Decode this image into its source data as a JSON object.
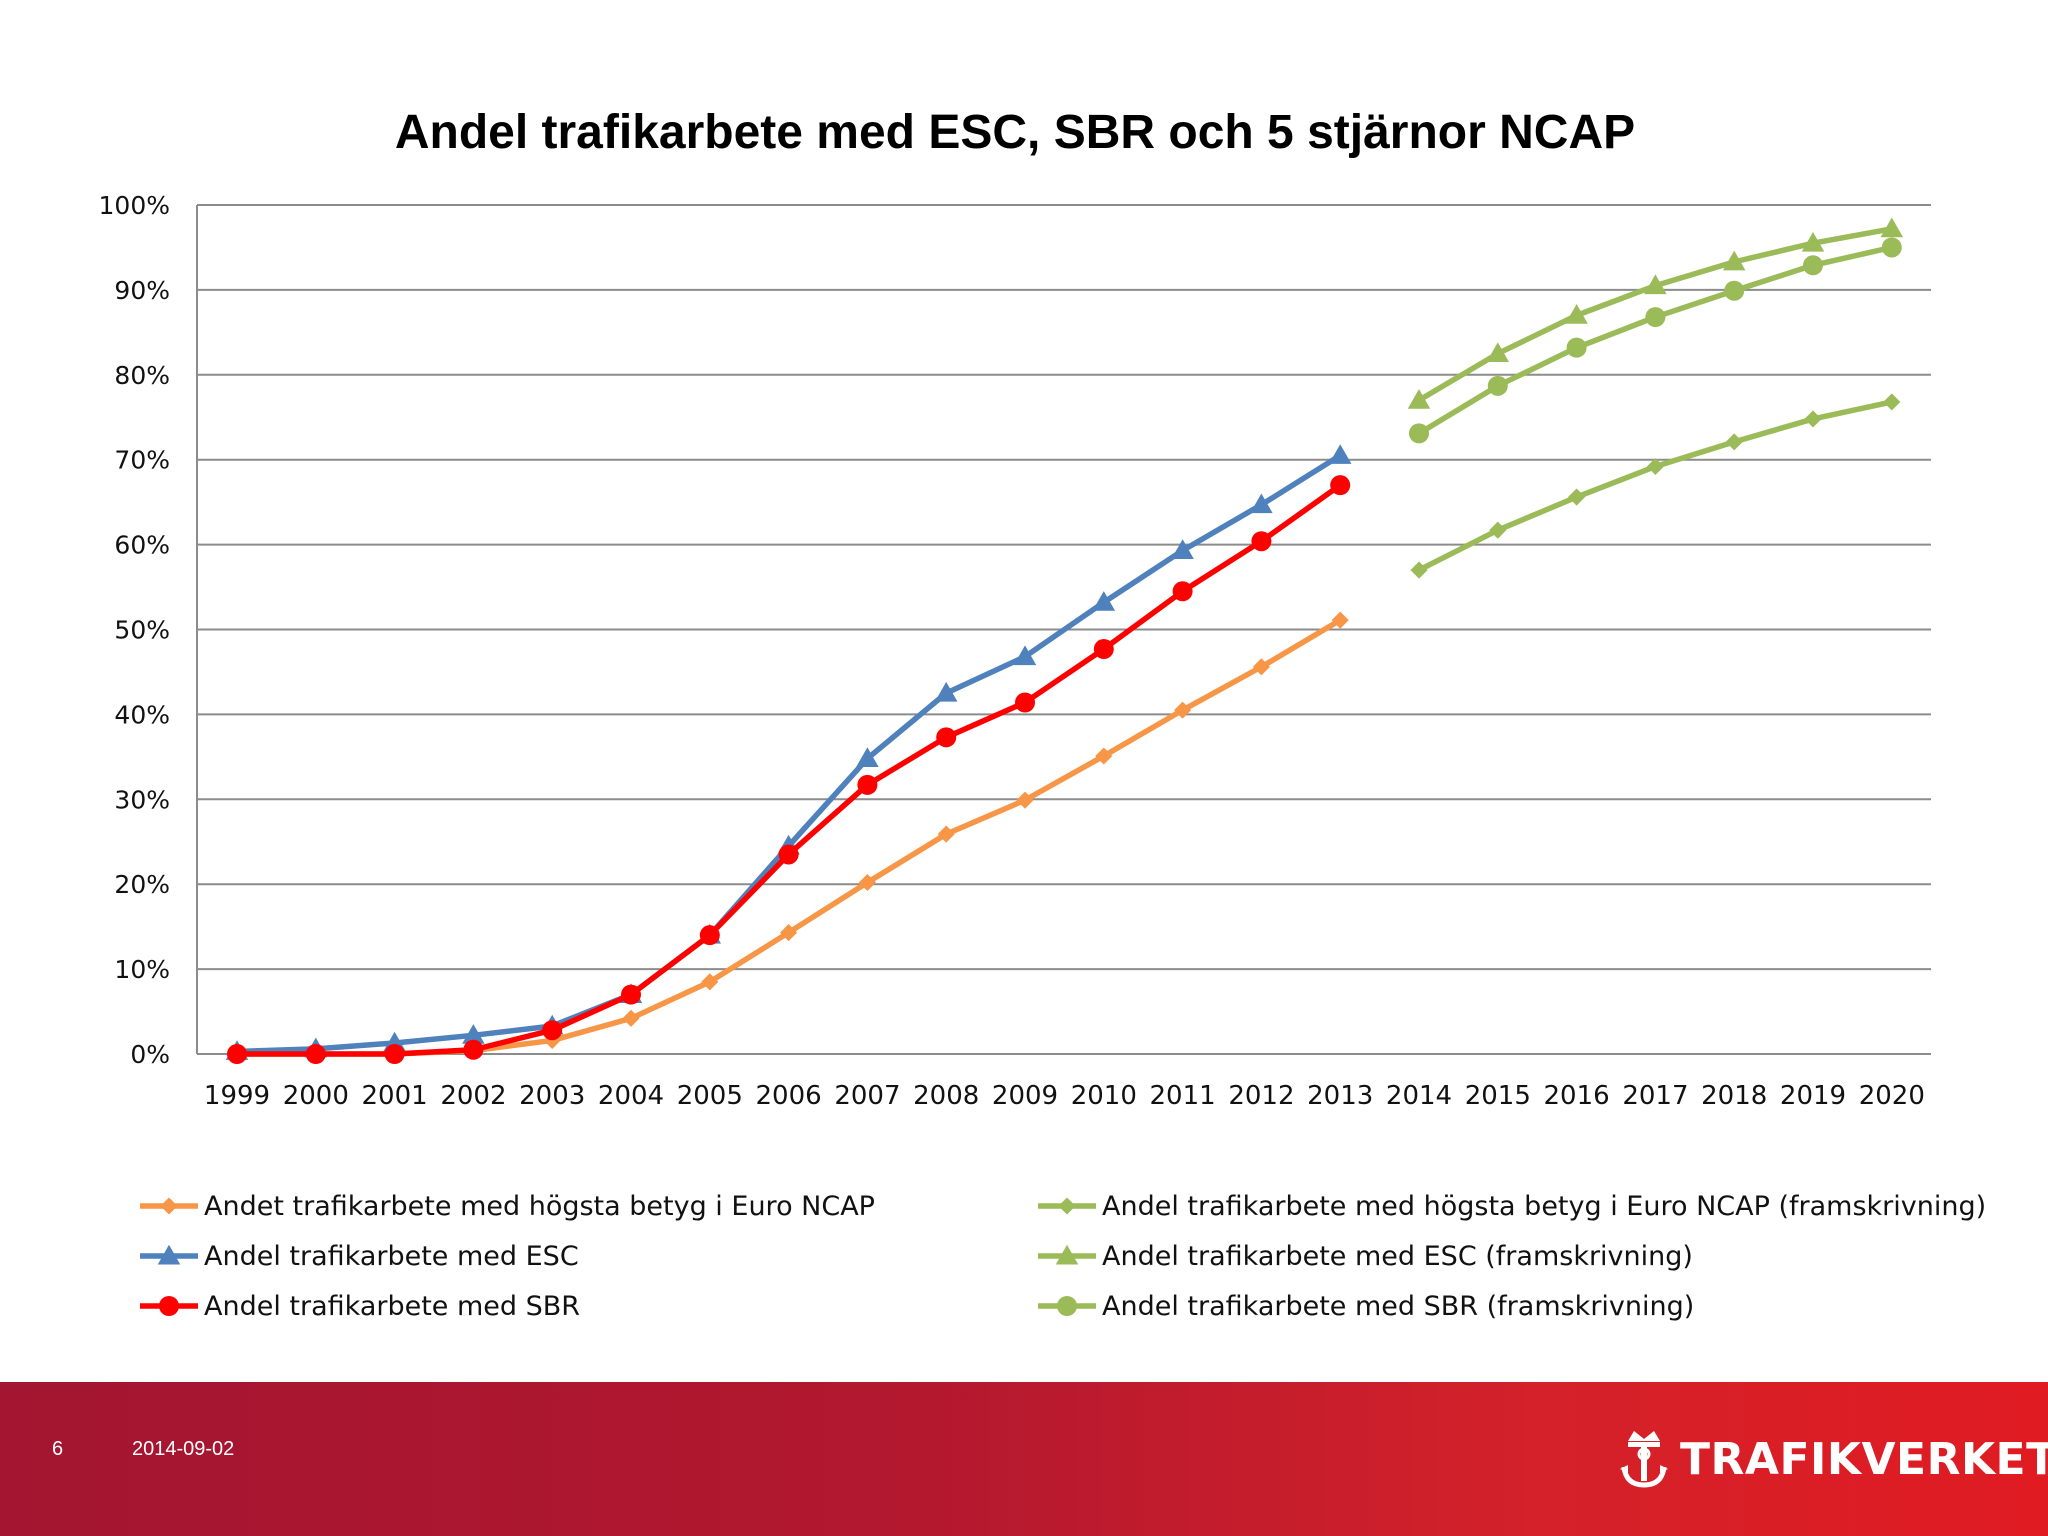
{
  "slide": {
    "page_number": "6",
    "date": "2014-09-02",
    "brand": "TRAFIKVERKET"
  },
  "colors": {
    "orange": "#f79646",
    "blue": "#4f81bd",
    "red": "#ff0000",
    "green": "#9bbb59",
    "grid": "#8c8c8c",
    "footer": "#b3182f"
  },
  "chart_data": {
    "type": "line",
    "title": "Andel trafikarbete med ESC, SBR och 5 stjärnor NCAP",
    "xlabel": "",
    "ylabel": "",
    "ylim": [
      0,
      1
    ],
    "y_ticks": [
      "0%",
      "10%",
      "20%",
      "30%",
      "40%",
      "50%",
      "60%",
      "70%",
      "80%",
      "90%",
      "100%"
    ],
    "categories": [
      "1999",
      "2000",
      "2001",
      "2002",
      "2003",
      "2004",
      "2005",
      "2006",
      "2007",
      "2008",
      "2009",
      "2010",
      "2011",
      "2012",
      "2013",
      "2014",
      "2015",
      "2016",
      "2017",
      "2018",
      "2019",
      "2020"
    ],
    "grid": true,
    "legend_position": "bottom",
    "series": [
      {
        "name": "Andet trafikarbete med högsta betyg i Euro NCAP",
        "color": "orange",
        "marker": "diamond",
        "values": [
          0.0,
          0.0,
          0.0,
          0.004,
          0.016,
          0.042,
          0.085,
          0.143,
          0.202,
          0.259,
          0.299,
          0.351,
          0.405,
          0.456,
          0.511,
          null,
          null,
          null,
          null,
          null,
          null,
          null
        ]
      },
      {
        "name": "Andel trafikarbete med ESC",
        "color": "blue",
        "marker": "triangle",
        "values": [
          0.003,
          0.006,
          0.013,
          0.022,
          0.033,
          0.07,
          0.14,
          0.245,
          0.348,
          0.425,
          0.468,
          0.532,
          0.593,
          0.647,
          0.705,
          null,
          null,
          null,
          null,
          null,
          null,
          null
        ]
      },
      {
        "name": "Andel trafikarbete med SBR",
        "color": "red",
        "marker": "circle",
        "values": [
          0.0,
          0.0,
          0.0,
          0.005,
          0.028,
          0.07,
          0.14,
          0.235,
          0.317,
          0.373,
          0.414,
          0.477,
          0.545,
          0.604,
          0.67,
          null,
          null,
          null,
          null,
          null,
          null,
          null
        ]
      },
      {
        "name": "Andel trafikarbete med högsta betyg i Euro NCAP (framskrivning)",
        "color": "green",
        "marker": "diamond",
        "values": [
          null,
          null,
          null,
          null,
          null,
          null,
          null,
          null,
          null,
          null,
          null,
          null,
          null,
          null,
          null,
          0.57,
          0.617,
          0.656,
          0.692,
          0.721,
          0.748,
          0.768
        ]
      },
      {
        "name": "Andel trafikarbete med ESC (framskrivning)",
        "color": "green",
        "marker": "triangle",
        "values": [
          null,
          null,
          null,
          null,
          null,
          null,
          null,
          null,
          null,
          null,
          null,
          null,
          null,
          null,
          null,
          0.77,
          0.825,
          0.87,
          0.905,
          0.933,
          0.955,
          0.972
        ]
      },
      {
        "name": "Andel trafikarbete med SBR (framskrivning)",
        "color": "green",
        "marker": "circle",
        "values": [
          null,
          null,
          null,
          null,
          null,
          null,
          null,
          null,
          null,
          null,
          null,
          null,
          null,
          null,
          null,
          0.731,
          0.787,
          0.832,
          0.868,
          0.899,
          0.929,
          0.95
        ]
      }
    ]
  }
}
